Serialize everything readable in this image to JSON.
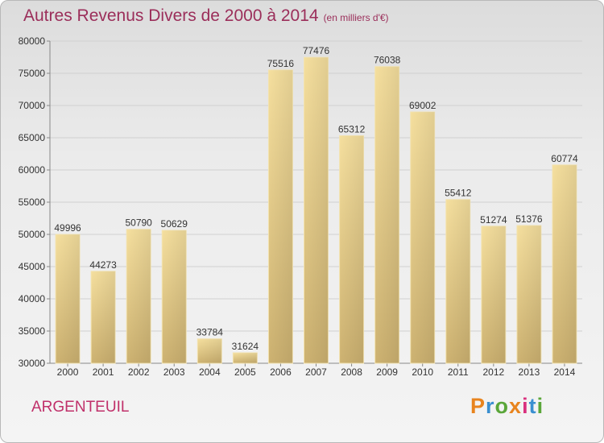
{
  "header": {
    "title": "Autres Revenus Divers de 2000 à 2014",
    "unit": "(en milliers d'€)"
  },
  "footer": {
    "city": "ARGENTEUIL",
    "brand": "Proxiti"
  },
  "colors": {
    "title": "#9b2e5a",
    "city": "#c0306a",
    "bar_light": "#f5df9e",
    "bar_dark": "#cdb271",
    "brand_letters": [
      "#e8841e",
      "#3a8fd0",
      "#5aa639",
      "#e8841e",
      "#d9307e",
      "#3a8fd0",
      "#5aa639"
    ]
  },
  "chart_data": {
    "type": "bar",
    "categories": [
      "2000",
      "2001",
      "2002",
      "2003",
      "2004",
      "2005",
      "2006",
      "2007",
      "2008",
      "2009",
      "2010",
      "2011",
      "2012",
      "2013",
      "2014"
    ],
    "values": [
      49996,
      44273,
      50790,
      50629,
      33784,
      31624,
      75516,
      77476,
      65312,
      76038,
      69002,
      55412,
      51274,
      51376,
      60774
    ],
    "y_ticks": [
      30000,
      35000,
      40000,
      45000,
      50000,
      55000,
      60000,
      65000,
      70000,
      75000,
      80000
    ],
    "ylim": [
      30000,
      80000
    ],
    "grid": true,
    "legend": "none"
  }
}
